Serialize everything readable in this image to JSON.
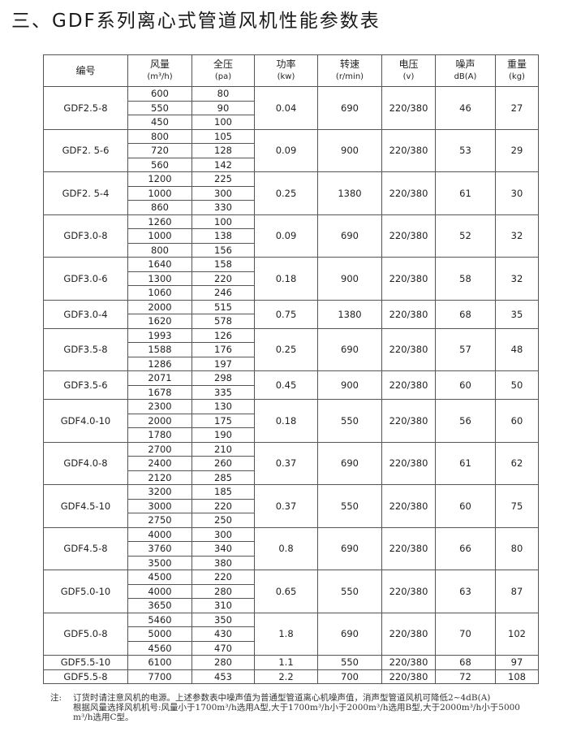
{
  "title": "三、GDF系列离心式管道风机性能参数表",
  "headers": [
    {
      "name": "编号",
      "unit": ""
    },
    {
      "name": "风量",
      "unit": "(m³/h)"
    },
    {
      "name": "全压",
      "unit": "(pa)"
    },
    {
      "name": "功率",
      "unit": "(kw)"
    },
    {
      "name": "转速",
      "unit": "(r/min)"
    },
    {
      "name": "电压",
      "unit": "(v)"
    },
    {
      "name": "噪声",
      "unit": "dB(A)"
    },
    {
      "name": "重量",
      "unit": "(kg)"
    }
  ],
  "models": [
    {
      "model": "GDF2.5-8",
      "flow": [
        "600",
        "550",
        "450"
      ],
      "pressure": [
        "80",
        "90",
        "100"
      ],
      "power": "0.04",
      "speed": "690",
      "voltage": "220/380",
      "noise": "46",
      "weight": "27"
    },
    {
      "model": "GDF2. 5-6",
      "flow": [
        "800",
        "720",
        "560"
      ],
      "pressure": [
        "105",
        "128",
        "142"
      ],
      "power": "0.09",
      "speed": "900",
      "voltage": "220/380",
      "noise": "53",
      "weight": "29"
    },
    {
      "model": "GDF2. 5-4",
      "flow": [
        "1200",
        "1000",
        "860"
      ],
      "pressure": [
        "225",
        "300",
        "330"
      ],
      "power": "0.25",
      "speed": "1380",
      "voltage": "220/380",
      "noise": "61",
      "weight": "30"
    },
    {
      "model": "GDF3.0-8",
      "flow": [
        "1260",
        "1000",
        "800"
      ],
      "pressure": [
        "100",
        "138",
        "156"
      ],
      "power": "0.09",
      "speed": "690",
      "voltage": "220/380",
      "noise": "52",
      "weight": "32"
    },
    {
      "model": "GDF3.0-6",
      "flow": [
        "1640",
        "1300",
        "1060"
      ],
      "pressure": [
        "158",
        "220",
        "246"
      ],
      "power": "0.18",
      "speed": "900",
      "voltage": "220/380",
      "noise": "58",
      "weight": "32"
    },
    {
      "model": "GDF3.0-4",
      "flow": [
        "2000",
        "1620"
      ],
      "pressure": [
        "515",
        "578"
      ],
      "power": "0.75",
      "speed": "1380",
      "voltage": "220/380",
      "noise": "68",
      "weight": "35"
    },
    {
      "model": "GDF3.5-8",
      "flow": [
        "1993",
        "1588",
        "1286"
      ],
      "pressure": [
        "126",
        "176",
        "197"
      ],
      "power": "0.25",
      "speed": "690",
      "voltage": "220/380",
      "noise": "57",
      "weight": "48"
    },
    {
      "model": "GDF3.5-6",
      "flow": [
        "2071",
        "1678"
      ],
      "pressure": [
        "298",
        "335"
      ],
      "power": "0.45",
      "speed": "900",
      "voltage": "220/380",
      "noise": "60",
      "weight": "50"
    },
    {
      "model": "GDF4.0-10",
      "flow": [
        "2300",
        "2000",
        "1780"
      ],
      "pressure": [
        "130",
        "175",
        "190"
      ],
      "power": "0.18",
      "speed": "550",
      "voltage": "220/380",
      "noise": "56",
      "weight": "60"
    },
    {
      "model": "GDF4.0-8",
      "flow": [
        "2700",
        "2400",
        "2120"
      ],
      "pressure": [
        "210",
        "260",
        "285"
      ],
      "power": "0.37",
      "speed": "690",
      "voltage": "220/380",
      "noise": "61",
      "weight": "62"
    },
    {
      "model": "GDF4.5-10",
      "flow": [
        "3200",
        "3000",
        "2750"
      ],
      "pressure": [
        "185",
        "220",
        "250"
      ],
      "power": "0.37",
      "speed": "550",
      "voltage": "220/380",
      "noise": "60",
      "weight": "75"
    },
    {
      "model": "GDF4.5-8",
      "flow": [
        "4000",
        "3760",
        "3500"
      ],
      "pressure": [
        "300",
        "340",
        "380"
      ],
      "power": "0.8",
      "speed": "690",
      "voltage": "220/380",
      "noise": "66",
      "weight": "80"
    },
    {
      "model": "GDF5.0-10",
      "flow": [
        "4500",
        "4000",
        "3650"
      ],
      "pressure": [
        "220",
        "280",
        "310"
      ],
      "power": "0.65",
      "speed": "550",
      "voltage": "220/380",
      "noise": "63",
      "weight": "87"
    },
    {
      "model": "GDF5.0-8",
      "flow": [
        "5460",
        "5000",
        "4560"
      ],
      "pressure": [
        "350",
        "430",
        "470"
      ],
      "power": "1.8",
      "speed": "690",
      "voltage": "220/380",
      "noise": "70",
      "weight": "102"
    },
    {
      "model": "GDF5.5-10",
      "flow": [
        "6100"
      ],
      "pressure": [
        "280"
      ],
      "power": "1.1",
      "speed": "550",
      "voltage": "220/380",
      "noise": "68",
      "weight": "97"
    },
    {
      "model": "GDF5.5-8",
      "flow": [
        "7700"
      ],
      "pressure": [
        "453"
      ],
      "power": "2.2",
      "speed": "700",
      "voltage": "220/380",
      "noise": "72",
      "weight": "108"
    }
  ],
  "note": {
    "label": "注:",
    "lines": [
      "订货时请注意风机的电源。上述参数表中噪声值为普通型管道离心机噪声值，消声型管道风机可降低2~4dB(A)",
      "根据风量选择风机机号:风量小于1700m³/h选用A型,大于1700m³/h小于2000m³/h选用B型,大于2000m³/h小于5000",
      "m³/h选用C型。"
    ]
  }
}
